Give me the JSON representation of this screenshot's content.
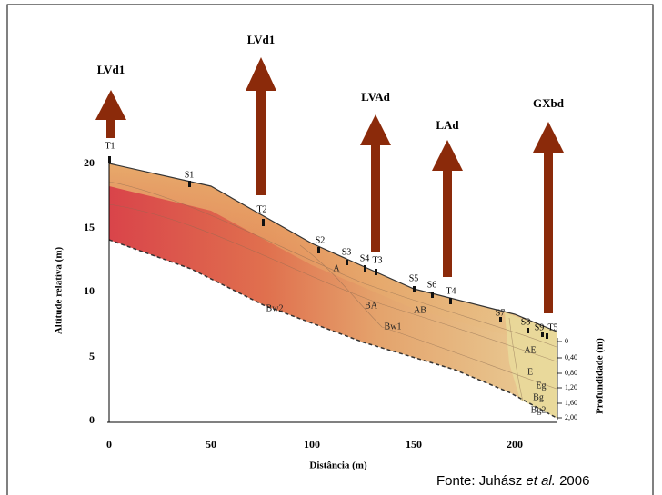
{
  "classes": [
    "LVd1",
    "LVd1",
    "LVAd",
    "LAd",
    "GXbd"
  ],
  "sites": [
    "T1",
    "S1",
    "T2",
    "S2",
    "S3",
    "S4",
    "T3",
    "S5",
    "S6",
    "T4",
    "S7",
    "S8",
    "S9",
    "T5"
  ],
  "horizons": [
    "A",
    "BA",
    "AB",
    "Bw2",
    "Bw1",
    "AE",
    "E",
    "Eg",
    "Bg",
    "Bg2"
  ],
  "y_axis": {
    "label": "Altitude relativa (m)",
    "ticks": [
      "0",
      "5",
      "10",
      "15",
      "20"
    ]
  },
  "x_axis": {
    "label": "Distância (m)",
    "ticks": [
      "0",
      "50",
      "100",
      "150",
      "200"
    ]
  },
  "depth_axis": {
    "label": "Profundidade (m)",
    "ticks": [
      "0",
      "0,40",
      "0,80",
      "1,20",
      "1,60",
      "2,00"
    ]
  },
  "source": {
    "prefix": "Fonte: Juhász ",
    "italic": "et al.",
    "suffix": " 2006"
  }
}
